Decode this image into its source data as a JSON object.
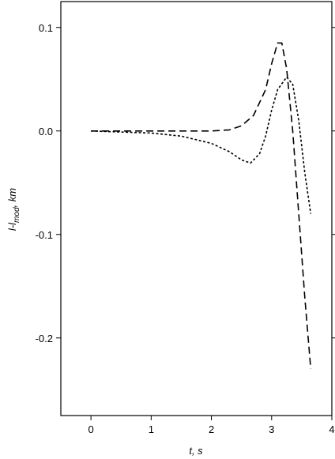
{
  "chart_data": {
    "type": "line",
    "xlabel": "t, s",
    "ylabel": {
      "main": "l-l",
      "sub": "mod",
      "suffix": ", km"
    },
    "xlim": [
      -0.5,
      4
    ],
    "xticks": [
      0,
      1,
      2,
      3,
      4
    ],
    "ylim": [
      -0.275,
      0.125
    ],
    "yticks": [
      {
        "value": -0.2,
        "label": "-0.2"
      },
      {
        "value": -0.1,
        "label": "-0.1"
      },
      {
        "value": 0,
        "label": "0.0"
      },
      {
        "value": 0.1,
        "label": "0.1"
      }
    ],
    "series": [
      {
        "color": "#000000",
        "dash": "dashed",
        "x": [
          0,
          1,
          2,
          2.3,
          2.5,
          2.7,
          2.9,
          3.0,
          3.1,
          3.17,
          3.25,
          3.35,
          3.45,
          3.55,
          3.65
        ],
        "values": [
          0,
          0,
          0,
          0.001,
          0.005,
          0.015,
          0.04,
          0.065,
          0.085,
          0.085,
          0.06,
          0.0,
          -0.08,
          -0.16,
          -0.23
        ]
      },
      {
        "color": "#000000",
        "dash": "dotted",
        "x": [
          0,
          1,
          1.5,
          2,
          2.3,
          2.5,
          2.65,
          2.8,
          2.9,
          3.0,
          3.1,
          3.25,
          3.35,
          3.45,
          3.55,
          3.65
        ],
        "values": [
          0,
          -0.002,
          -0.005,
          -0.012,
          -0.02,
          -0.028,
          -0.031,
          -0.022,
          -0.005,
          0.02,
          0.04,
          0.052,
          0.045,
          0.01,
          -0.04,
          -0.08
        ]
      }
    ]
  }
}
